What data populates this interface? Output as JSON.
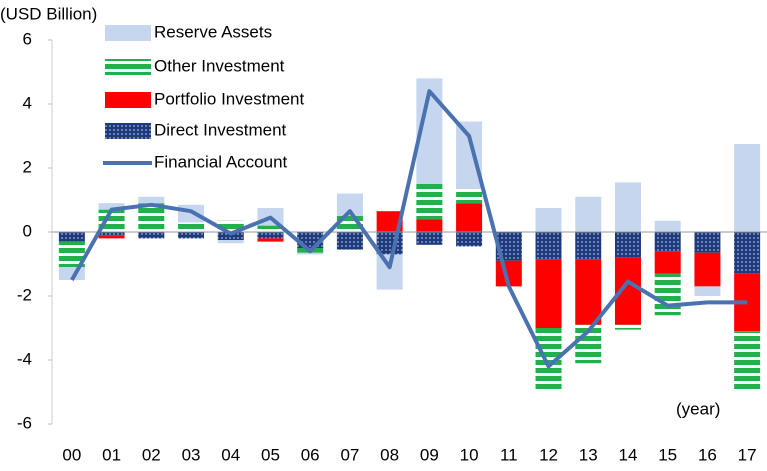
{
  "chart_data": {
    "type": "bar",
    "stacked": true,
    "annotations": [
      "(USD Billion)",
      "(year)"
    ],
    "categories": [
      "00",
      "01",
      "02",
      "03",
      "04",
      "05",
      "06",
      "07",
      "08",
      "09",
      "10",
      "11",
      "12",
      "13",
      "14",
      "15",
      "16",
      "17"
    ],
    "ylim": [
      -6,
      6
    ],
    "yticks": [
      -6,
      -4,
      -2,
      0,
      2,
      4,
      6
    ],
    "grid": false,
    "legend": "top-left",
    "series": [
      {
        "name": "Reserve Assets",
        "color": "#c6d6ef",
        "pattern": "solid",
        "values": [
          -0.4,
          0.2,
          0.2,
          0.55,
          -0.1,
          0.55,
          -0.05,
          0.7,
          -1.1,
          3.3,
          2.1,
          0,
          0.75,
          1.1,
          1.55,
          0.35,
          -0.3,
          2.75
        ]
      },
      {
        "name": "Other Investment",
        "color": "#22b04b",
        "pattern": "stripes",
        "values": [
          -0.8,
          0.7,
          0.9,
          0.3,
          0.35,
          0.2,
          -0.15,
          0.5,
          0,
          1.1,
          0.45,
          0,
          -2.0,
          -1.2,
          -0.15,
          -1.3,
          0,
          -1.85
        ]
      },
      {
        "name": "Portfolio Investment",
        "color": "#ff0000",
        "pattern": "solid",
        "values": [
          0,
          -0.1,
          0,
          0,
          0,
          -0.1,
          0,
          0,
          0.65,
          0.4,
          0.9,
          -0.8,
          -2.15,
          -2.05,
          -2.1,
          -0.7,
          -1.05,
          -1.8
        ]
      },
      {
        "name": "Direct Investment",
        "color": "#1f3a7a",
        "pattern": "dots",
        "values": [
          -0.3,
          -0.1,
          -0.2,
          -0.2,
          -0.25,
          -0.2,
          -0.5,
          -0.55,
          -0.7,
          -0.4,
          -0.45,
          -0.9,
          -0.85,
          -0.85,
          -0.8,
          -0.6,
          -0.65,
          -1.3
        ]
      },
      {
        "name": "Financial Account",
        "color": "#4a72b0",
        "type": "line",
        "values": [
          -1.5,
          0.7,
          0.85,
          0.65,
          -0.05,
          0.45,
          -0.6,
          0.65,
          -1.1,
          4.4,
          3.0,
          -1.7,
          -4.2,
          -3.1,
          -1.55,
          -2.3,
          -2.2,
          -2.2
        ]
      }
    ]
  }
}
